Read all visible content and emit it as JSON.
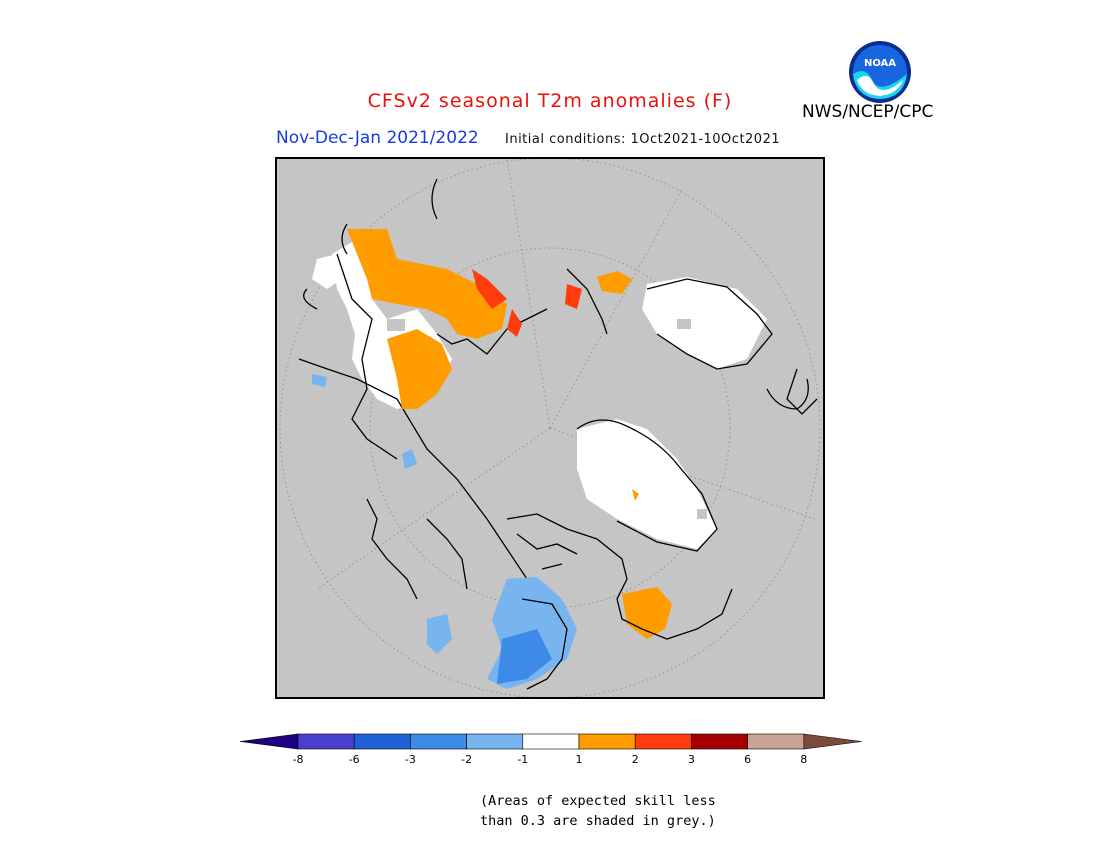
{
  "header": {
    "title": "CFSv2 seasonal T2m anomalies (F)",
    "period": "Nov-Dec-Jan 2021/2022",
    "initial_conditions": "Initial conditions: 1Oct2021-10Oct2021",
    "agency": "NWS/NCEP/CPC",
    "logo_text": "NOAA"
  },
  "colorbar": {
    "tick_labels": [
      "-8",
      "-6",
      "-3",
      "-2",
      "-1",
      "1",
      "2",
      "3",
      "6",
      "8"
    ],
    "colors": [
      "#1f0080",
      "#4a3fcc",
      "#2060d6",
      "#3d8ae8",
      "#78b4f0",
      "#ffffff",
      "#ff9c00",
      "#ff3c0d",
      "#a50000",
      "#c9a393",
      "#7a4a3a"
    ]
  },
  "note": {
    "line1": "(Areas of expected skill less",
    "line2": "than 0.3 are shaded in grey.)"
  }
}
